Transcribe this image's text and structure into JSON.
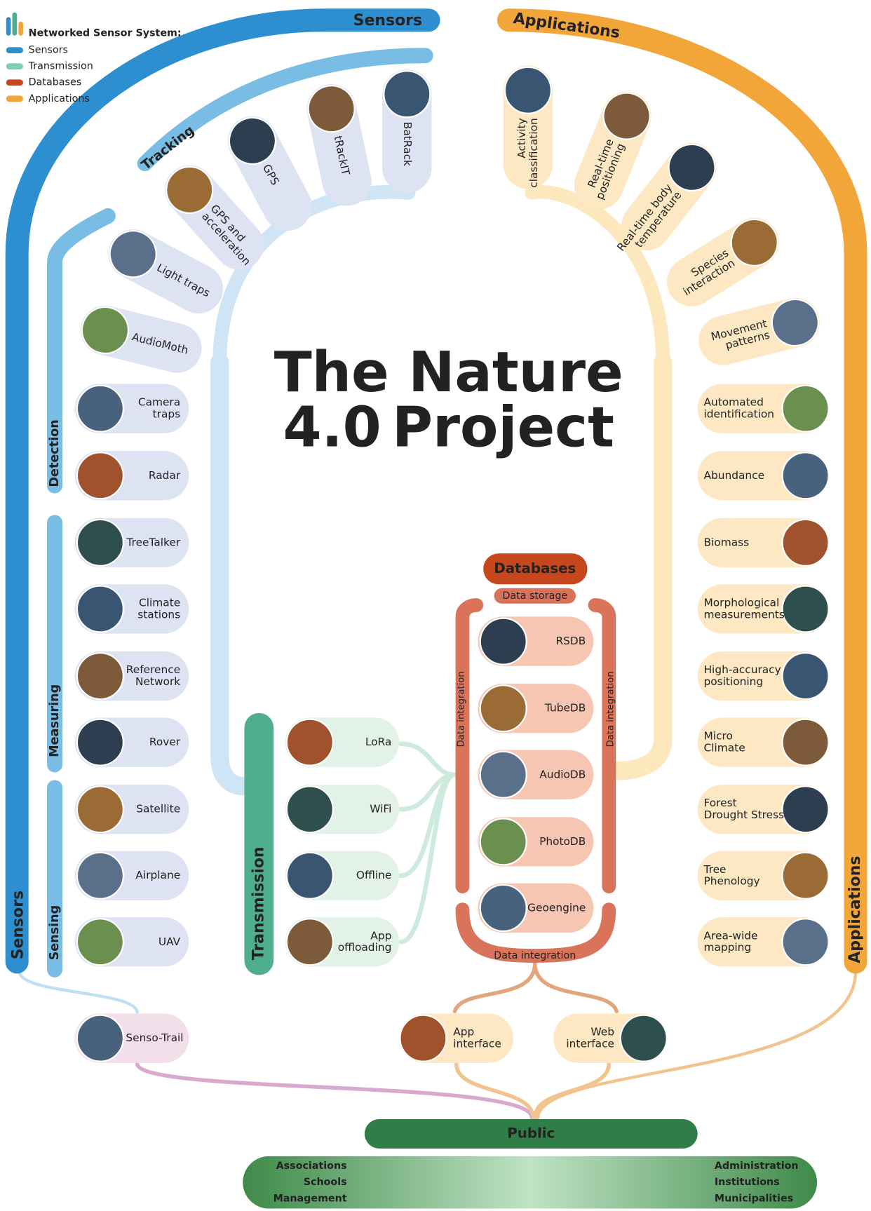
{
  "legend": {
    "title": "Networked Sensor System:",
    "items": [
      "Sensors",
      "Transmission",
      "Databases",
      "Applications"
    ]
  },
  "title": {
    "line1": "The Nature",
    "version": "4.0",
    "line2": "Project"
  },
  "sensors": {
    "arc_label": "Sensors",
    "side_label": "Sensors",
    "tracking": {
      "label": "Tracking",
      "items": [
        [
          "BatRack"
        ],
        [
          "tRackIT"
        ],
        [
          "GPS"
        ],
        [
          "GPS and",
          "acceleration"
        ]
      ]
    },
    "detection": {
      "label": "Detection",
      "items": [
        [
          "Light traps"
        ],
        [
          "AudioMoth"
        ],
        [
          "Camera",
          "traps"
        ],
        [
          "Radar"
        ]
      ]
    },
    "measuring": {
      "label": "Measuring",
      "items": [
        [
          "TreeTalker"
        ],
        [
          "Climate",
          "stations"
        ],
        [
          "Reference",
          "Network"
        ],
        [
          "Rover"
        ]
      ]
    },
    "sensing": {
      "label": "Sensing",
      "items": [
        [
          "Satellite"
        ],
        [
          "Airplane"
        ],
        [
          "UAV"
        ]
      ]
    }
  },
  "senso_trail": "Senso-Trail",
  "transmission": {
    "label": "Transmission",
    "items": [
      [
        "LoRa"
      ],
      [
        "WiFi"
      ],
      [
        "Offline"
      ],
      [
        "App",
        "offloading"
      ]
    ]
  },
  "databases": {
    "title": "Databases",
    "subtitle": "Data storage",
    "left_label": "Data integration",
    "right_label": "Data integration",
    "bottom_label": "Data integration",
    "items": [
      [
        "RSDB"
      ],
      [
        "TubeDB"
      ],
      [
        "AudioDB"
      ],
      [
        "PhotoDB"
      ],
      [
        "Geoengine"
      ]
    ]
  },
  "interfaces": [
    [
      "App",
      "interface"
    ],
    [
      "Web",
      "interface"
    ]
  ],
  "applications": {
    "arc_label": "Applications",
    "side_label": "Applications",
    "items": [
      [
        "Activity",
        "classification"
      ],
      [
        "Real-time",
        "positioning"
      ],
      [
        "Real-time body",
        "temperature"
      ],
      [
        "Species",
        "interaction"
      ],
      [
        "Movement",
        "patterns"
      ],
      [
        "Automated",
        "identification"
      ],
      [
        "Abundance"
      ],
      [
        "Biomass"
      ],
      [
        "Morphological",
        "measurements"
      ],
      [
        "High-accuracy",
        "positioning"
      ],
      [
        "Micro",
        "Climate"
      ],
      [
        "Forest",
        "Drought Stress"
      ],
      [
        "Tree",
        "Phenology"
      ],
      [
        "Area-wide",
        "mapping"
      ]
    ]
  },
  "public": {
    "label": "Public",
    "left": [
      "Associations",
      "Schools",
      "Management"
    ],
    "right": [
      "Administration",
      "Institutions",
      "Municipalities"
    ]
  }
}
